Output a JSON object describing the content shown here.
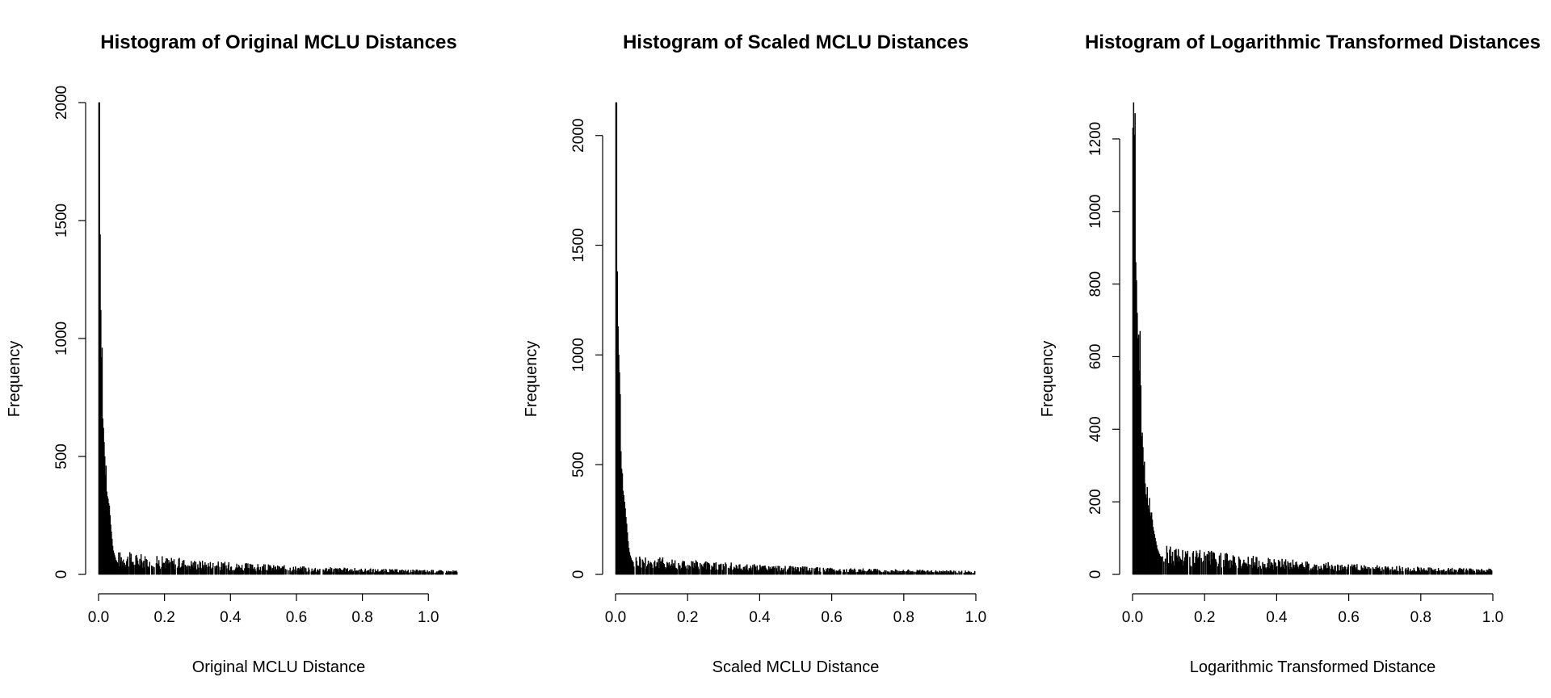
{
  "chart_data": [
    {
      "type": "bar",
      "title": "Histogram of Original MCLU Distances",
      "xlabel": "Original MCLU Distance",
      "ylabel": "Frequency",
      "xlim": [
        0,
        1.09
      ],
      "ylim": [
        0,
        2000
      ],
      "xticks": [
        "0.0",
        "0.2",
        "0.4",
        "0.6",
        "0.8",
        "1.0"
      ],
      "yticks": [
        "0",
        "500",
        "1000",
        "1500",
        "2000"
      ],
      "bin_width": 0.002,
      "values": [
        2000,
        2000,
        1440,
        1120,
        920,
        960,
        660,
        620,
        560,
        500,
        420,
        460,
        350,
        330,
        320,
        300,
        290,
        250,
        210,
        180,
        150,
        120,
        100,
        90,
        80,
        70,
        60,
        55,
        50,
        45
      ],
      "tail": {
        "from": 0.06,
        "to": 1.09,
        "max": 75,
        "min": 5
      }
    },
    {
      "type": "bar",
      "title": "Histogram of Scaled MCLU Distances",
      "xlabel": "Scaled MCLU Distance",
      "ylabel": "Frequency",
      "xlim": [
        0,
        1.0
      ],
      "ylim": [
        0,
        2150
      ],
      "xticks": [
        "0.0",
        "0.2",
        "0.4",
        "0.6",
        "0.8",
        "1.0"
      ],
      "yticks": [
        "0",
        "500",
        "1000",
        "1500",
        "2000"
      ],
      "bin_width": 0.002,
      "values": [
        2150,
        2150,
        1380,
        1130,
        1000,
        920,
        820,
        560,
        480,
        460,
        380,
        360,
        330,
        300,
        260,
        230,
        190,
        150,
        120,
        100,
        85,
        75,
        65,
        60,
        55
      ],
      "tail": {
        "from": 0.05,
        "to": 1.0,
        "max": 70,
        "min": 5
      }
    },
    {
      "type": "bar",
      "title": "Histogram of Logarithmic Transformed Distances",
      "xlabel": "Logarithmic Transformed Distance",
      "ylabel": "Frequency",
      "xlim": [
        0,
        1.0
      ],
      "ylim": [
        0,
        1300
      ],
      "xticks": [
        "0.0",
        "0.2",
        "0.4",
        "0.6",
        "0.8",
        "1.0"
      ],
      "yticks": [
        "0",
        "200",
        "400",
        "600",
        "800",
        "1000",
        "1200"
      ],
      "bin_width": 0.002,
      "values": [
        1230,
        1300,
        1210,
        1270,
        860,
        810,
        720,
        650,
        660,
        560,
        670,
        520,
        380,
        390,
        350,
        300,
        310,
        250,
        220,
        210,
        240,
        190,
        180,
        210,
        170,
        160,
        170,
        150,
        130,
        120,
        110,
        100,
        90,
        80,
        70,
        65,
        60,
        55,
        50,
        48
      ],
      "tail": {
        "from": 0.08,
        "to": 1.0,
        "max": 65,
        "min": 5
      }
    }
  ]
}
